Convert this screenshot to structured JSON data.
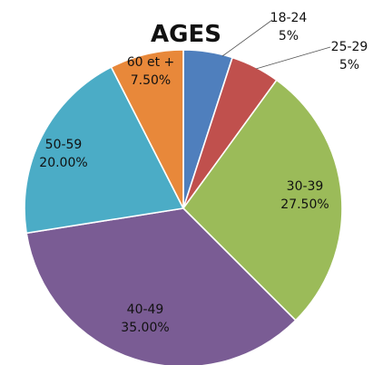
{
  "chart_data": {
    "type": "pie",
    "title": "AGES",
    "slices": [
      {
        "category": "18-24",
        "value": 5,
        "value_label": "5%",
        "color": "#4f7fbd"
      },
      {
        "category": "25-29",
        "value": 5,
        "value_label": "5%",
        "color": "#c0504d"
      },
      {
        "category": "30-39",
        "value": 27.5,
        "value_label": "27.50%",
        "color": "#9bbb59"
      },
      {
        "category": "40-49",
        "value": 35,
        "value_label": "35.00%",
        "color": "#7a5c94"
      },
      {
        "category": "50-59",
        "value": 20,
        "value_label": "20.00%",
        "color": "#4bacc6"
      },
      {
        "category": "60 et +",
        "value": 7.5,
        "value_label": "7.50%",
        "color": "#e8883a"
      }
    ],
    "legend": "none"
  }
}
